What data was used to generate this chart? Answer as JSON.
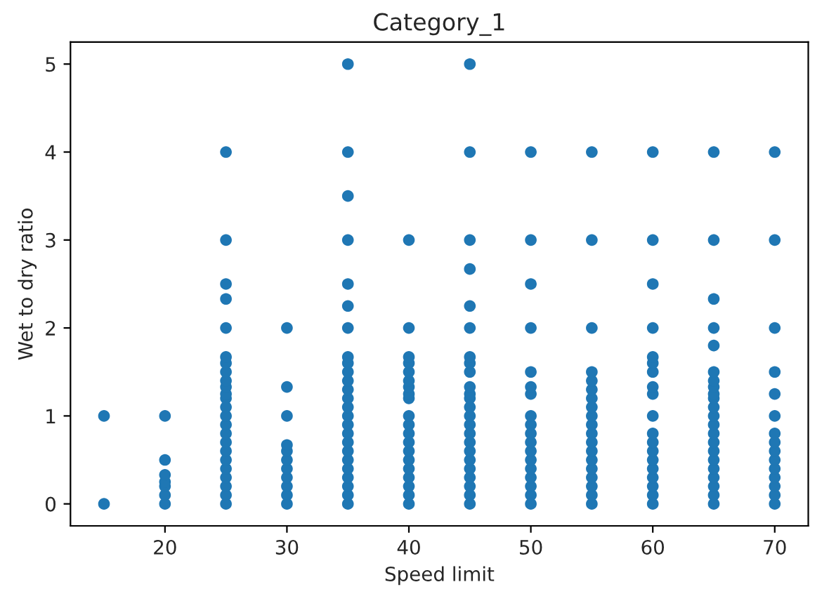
{
  "chart_data": {
    "type": "scatter",
    "title": "Category_1",
    "xlabel": "Speed limit",
    "ylabel": "Wet to dry ratio",
    "x": [
      15,
      15,
      20,
      20,
      20,
      20,
      20,
      20,
      20,
      25,
      25,
      25,
      25,
      25,
      25,
      25,
      25,
      25,
      25,
      25,
      25,
      25,
      25,
      25,
      25,
      25,
      25,
      25,
      25,
      25,
      25,
      25,
      25,
      30,
      30,
      30,
      30,
      30,
      30,
      30,
      30,
      30,
      30,
      30,
      35,
      35,
      35,
      35,
      35,
      35,
      35,
      35,
      35,
      35,
      35,
      35,
      35,
      35,
      35,
      35,
      35,
      35,
      35,
      35,
      35,
      35,
      35,
      35,
      35,
      40,
      40,
      40,
      40,
      40,
      40,
      40,
      40,
      40,
      40,
      40,
      40,
      40,
      40,
      40,
      40,
      40,
      40,
      40,
      40,
      45,
      45,
      45,
      45,
      45,
      45,
      45,
      45,
      45,
      45,
      45,
      45,
      45,
      45,
      45,
      45,
      45,
      45,
      45,
      45,
      45,
      45,
      45,
      45,
      50,
      50,
      50,
      50,
      50,
      50,
      50,
      50,
      50,
      50,
      50,
      50,
      50,
      50,
      50,
      50,
      50,
      50,
      55,
      55,
      55,
      55,
      55,
      55,
      55,
      55,
      55,
      55,
      55,
      55,
      55,
      55,
      55,
      55,
      55,
      55,
      55,
      60,
      60,
      60,
      60,
      60,
      60,
      60,
      60,
      60,
      60,
      60,
      60,
      60,
      60,
      60,
      60,
      60,
      60,
      60,
      65,
      65,
      65,
      65,
      65,
      65,
      65,
      65,
      65,
      65,
      65,
      65,
      65,
      65,
      65,
      65,
      65,
      65,
      65,
      65,
      65,
      65,
      70,
      70,
      70,
      70,
      70,
      70,
      70,
      70,
      70,
      70,
      70,
      70,
      70,
      70,
      70
    ],
    "values": [
      0,
      1,
      0,
      0.1,
      0.2,
      0.25,
      0.33,
      0.5,
      1,
      0,
      0.1,
      0.2,
      0.3,
      0.4,
      0.5,
      0.6,
      0.7,
      0.8,
      0.9,
      1,
      1.1,
      1.2,
      1.25,
      1.33,
      1.4,
      1.5,
      1.6,
      1.67,
      2,
      2.33,
      2.5,
      3,
      4,
      0,
      0.1,
      0.2,
      0.3,
      0.4,
      0.5,
      0.6,
      0.67,
      1,
      1.33,
      2,
      0,
      0.1,
      0.2,
      0.3,
      0.4,
      0.5,
      0.6,
      0.7,
      0.8,
      0.9,
      1,
      1.1,
      1.2,
      1.3,
      1.4,
      1.5,
      1.6,
      1.67,
      2,
      2.25,
      2.5,
      3,
      3.5,
      4,
      5,
      0,
      0.1,
      0.2,
      0.3,
      0.4,
      0.5,
      0.6,
      0.7,
      0.8,
      0.9,
      1,
      1.2,
      1.25,
      1.33,
      1.4,
      1.5,
      1.6,
      1.67,
      2,
      3,
      0,
      0.1,
      0.2,
      0.3,
      0.4,
      0.5,
      0.6,
      0.7,
      0.8,
      0.9,
      1,
      1.1,
      1.2,
      1.25,
      1.33,
      1.5,
      1.6,
      1.67,
      2,
      2.25,
      2.67,
      3,
      4,
      5,
      0,
      0.1,
      0.2,
      0.3,
      0.4,
      0.5,
      0.6,
      0.7,
      0.8,
      0.9,
      1,
      1.25,
      1.33,
      1.5,
      2,
      2.5,
      3,
      4,
      0,
      0.1,
      0.2,
      0.3,
      0.4,
      0.5,
      0.6,
      0.7,
      0.8,
      0.9,
      1,
      1.1,
      1.2,
      1.3,
      1.4,
      1.5,
      2,
      3,
      4,
      0,
      0.1,
      0.2,
      0.3,
      0.4,
      0.5,
      0.6,
      0.7,
      0.8,
      1,
      1.25,
      1.33,
      1.5,
      1.6,
      1.67,
      2,
      2.5,
      3,
      4,
      0,
      0.1,
      0.2,
      0.3,
      0.4,
      0.5,
      0.6,
      0.7,
      0.8,
      0.9,
      1,
      1.1,
      1.2,
      1.25,
      1.33,
      1.4,
      1.5,
      1.8,
      2,
      2.33,
      3,
      4,
      0,
      0.1,
      0.2,
      0.3,
      0.4,
      0.5,
      0.6,
      0.7,
      0.8,
      1,
      1.25,
      1.5,
      2,
      3,
      4
    ],
    "color": "#1f77b4",
    "marker": "circle",
    "xlim": [
      12.25,
      72.75
    ],
    "ylim": [
      -0.25,
      5.25
    ],
    "xticks": [
      20,
      30,
      40,
      50,
      60,
      70
    ],
    "yticks": [
      0,
      1,
      2,
      3,
      4,
      5
    ],
    "grid": false
  }
}
